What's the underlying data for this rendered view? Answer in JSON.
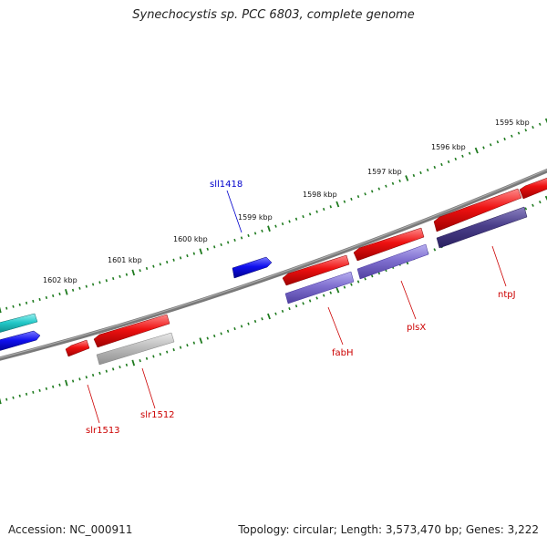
{
  "title": "Synechocystis sp. PCC 6803, complete genome",
  "footer": {
    "accession": "Accession: NC_000911",
    "info": "Topology: circular; Length: 3,573,470 bp; Genes: 3,222"
  },
  "colors": {
    "backbone": "#7a7a7a",
    "ticks": "#1e7a1e",
    "gene_red": "#ee1111",
    "gene_blue": "#1010ee",
    "gene_cyan": "#22c8c8",
    "cog_purple": "#8070d0",
    "cog_dark_purple": "#4a3f8a",
    "cog_gray": "#bdbdbd",
    "label_red": "#cc0000",
    "label_blue": "#0000cc"
  },
  "scale_labels": [
    "1595 kbp",
    "1596 kbp",
    "1597 kbp",
    "1598 kbp",
    "1599 kbp",
    "1600 kbp",
    "1601 kbp",
    "1602 kbp"
  ],
  "gene_labels": {
    "sll1418": "sll1418",
    "ntpJ": "ntpJ",
    "plsX": "plsX",
    "fabH": "fabH",
    "slr1512": "slr1512",
    "slr1513": "slr1513"
  }
}
